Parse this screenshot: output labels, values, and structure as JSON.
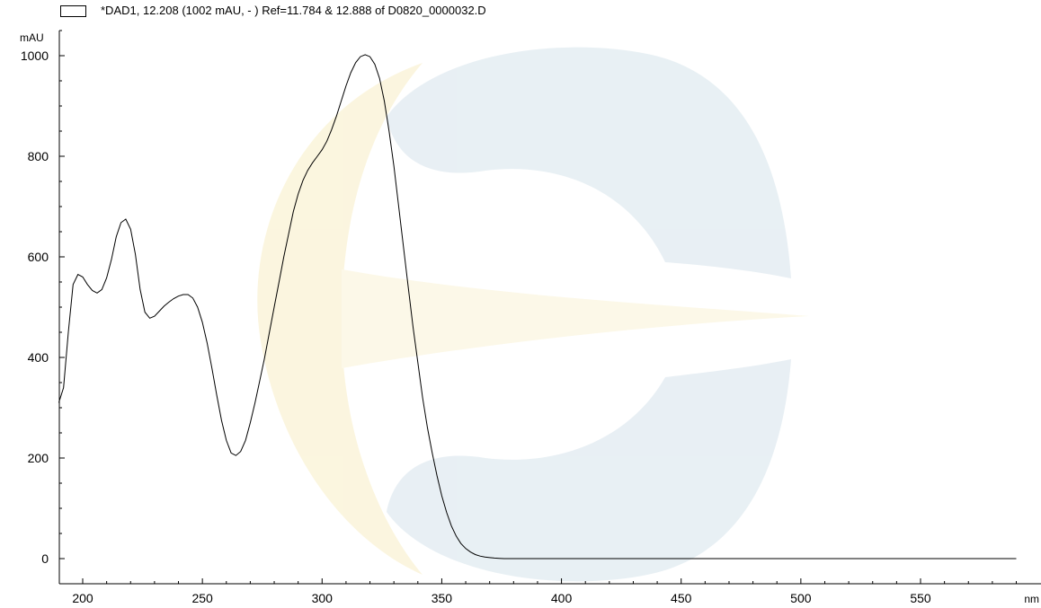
{
  "chart_data": {
    "type": "line",
    "legend_position": "top-left",
    "legend": [
      "*DAD1, 12.208 (1002 mAU, - ) Ref=11.784 & 12.888 of D0820_0000032.D"
    ],
    "ylabel": "mAU",
    "xunit": "nm",
    "xlim": [
      190,
      590
    ],
    "ylim": [
      -50,
      1050
    ],
    "xticks": [
      200,
      250,
      300,
      350,
      400,
      450,
      500,
      550
    ],
    "yticks": [
      0,
      200,
      400,
      600,
      800,
      1000
    ],
    "grid": false,
    "series": [
      {
        "color": "#000000",
        "x": [
          190,
          192,
          194,
          196,
          198,
          200,
          202,
          204,
          206,
          208,
          210,
          212,
          214,
          216,
          218,
          220,
          222,
          224,
          226,
          228,
          230,
          232,
          234,
          236,
          238,
          240,
          242,
          244,
          246,
          248,
          250,
          252,
          254,
          256,
          258,
          260,
          262,
          264,
          266,
          268,
          270,
          272,
          274,
          276,
          278,
          280,
          282,
          284,
          286,
          288,
          290,
          292,
          294,
          296,
          298,
          300,
          302,
          304,
          306,
          308,
          310,
          312,
          314,
          316,
          318,
          320,
          322,
          324,
          326,
          328,
          330,
          332,
          334,
          336,
          338,
          340,
          342,
          344,
          346,
          348,
          350,
          352,
          354,
          356,
          358,
          360,
          362,
          364,
          366,
          368,
          370,
          372,
          374,
          376,
          378,
          380,
          382,
          384,
          386,
          388,
          390,
          392,
          394,
          396,
          398,
          400,
          402,
          404,
          406,
          408,
          410,
          420,
          430,
          440,
          450,
          460,
          470,
          480,
          490,
          500,
          510,
          520,
          530,
          540,
          550,
          560,
          570,
          580,
          590
        ],
        "y": [
          310,
          340,
          450,
          545,
          565,
          560,
          545,
          533,
          528,
          535,
          558,
          595,
          640,
          668,
          675,
          655,
          605,
          535,
          490,
          478,
          482,
          492,
          502,
          510,
          517,
          522,
          525,
          525,
          518,
          500,
          470,
          428,
          378,
          325,
          275,
          235,
          210,
          205,
          213,
          235,
          270,
          310,
          355,
          400,
          450,
          500,
          550,
          600,
          645,
          690,
          725,
          752,
          772,
          787,
          800,
          813,
          830,
          853,
          880,
          910,
          940,
          966,
          986,
          998,
          1002,
          998,
          983,
          955,
          910,
          850,
          780,
          700,
          620,
          540,
          460,
          390,
          320,
          260,
          210,
          165,
          125,
          92,
          65,
          45,
          30,
          20,
          13,
          8,
          5,
          3,
          2,
          1,
          0.5,
          0,
          0,
          0,
          0,
          0,
          0,
          0,
          0,
          0,
          0,
          0,
          0,
          0,
          0,
          0,
          0,
          0,
          0,
          0,
          0,
          0,
          0,
          0,
          0,
          0,
          0,
          0,
          0,
          0,
          0,
          0,
          0,
          0,
          0,
          0,
          0
        ]
      }
    ]
  }
}
